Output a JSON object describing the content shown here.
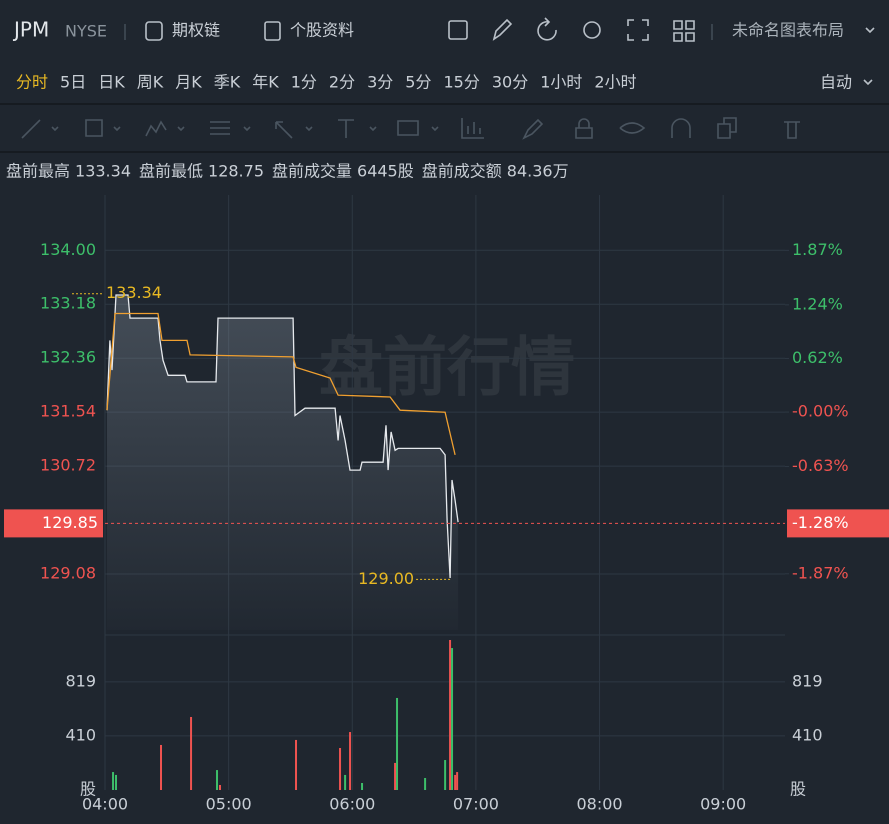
{
  "header": {
    "symbol": "JPM",
    "exchange": "NYSE",
    "buttons": [
      "期权链",
      "个股资料"
    ],
    "layout_name": "未命名图表布局"
  },
  "timeframes": {
    "items": [
      "分时",
      "5日",
      "日K",
      "周K",
      "月K",
      "季K",
      "年K",
      "1分",
      "2分",
      "3分",
      "5分",
      "15分",
      "30分",
      "1小时",
      "2小时"
    ],
    "active": 0,
    "active_color": "#e8b923",
    "mode": "自动"
  },
  "info": [
    {
      "label": "盘前最高",
      "value": "133.34"
    },
    {
      "label": "盘前最低",
      "value": "128.75"
    },
    {
      "label": "盘前成交量",
      "value": "6445股"
    },
    {
      "label": "盘前成交额",
      "value": "84.36万"
    }
  ],
  "chart_data": [
    {
      "type": "line",
      "watermark": "盘前行情",
      "xlim": [
        4,
        9.5
      ],
      "ylim": [
        128.23,
        134.84
      ],
      "y2lim": [
        -2.52,
        2.51
      ],
      "up_color": "#3dbf6a",
      "down_color": "#ef5350",
      "yticks": [
        {
          "value": 134,
          "label": "134.00"
        },
        133.18,
        132.36,
        131.54,
        130.72,
        129.08
      ],
      "y2ticks": [
        {
          "value": 1.87,
          "label": "1.87%"
        },
        {
          "value": 1.24,
          "label": "1.24%"
        },
        {
          "value": 0.62,
          "label": "0.62%"
        },
        {
          "value": 0,
          "label": "-0.00%"
        },
        {
          "value": -0.63,
          "label": "-0.63%"
        },
        {
          "value": -1.87,
          "label": "-1.87%"
        }
      ],
      "series": [
        {
          "color": "#e6e9ed",
          "x": [
            4.016,
            4.04,
            4.057,
            4.089,
            4.186,
            4.202,
            4.429,
            4.445,
            4.469,
            4.51,
            4.647,
            4.663,
            4.898,
            4.914,
            5.521,
            5.537,
            5.618,
            5.861,
            5.885,
            5.901,
            5.942,
            5.982,
            6.063,
            6.079,
            6.249,
            6.273,
            6.29,
            6.314,
            6.346,
            6.371,
            6.71,
            6.751,
            6.767,
            6.791,
            6.807,
            6.832,
            6.856
          ],
          "values": [
            131.57,
            132.63,
            132.18,
            133.32,
            133.32,
            132.97,
            132.97,
            132.63,
            132.33,
            132.1,
            132.1,
            132,
            132,
            132.97,
            132.97,
            131.49,
            131.6,
            131.6,
            131.11,
            131.49,
            131.11,
            130.66,
            130.66,
            130.78,
            130.78,
            131.34,
            130.66,
            131.24,
            130.96,
            130.99,
            130.99,
            130.89,
            129.9,
            129.02,
            130.51,
            130.2,
            129.87
          ]
        },
        {
          "color": "#f0a030",
          "x": [
            4.016,
            4.081,
            4.429,
            4.461,
            4.663,
            4.688,
            5.521,
            5.545,
            5.82,
            5.885,
            6.306,
            6.387,
            6.751,
            6.832
          ],
          "values": [
            131.57,
            133.04,
            133.04,
            132.63,
            132.63,
            132.41,
            132.38,
            132.22,
            132.06,
            131.8,
            131.77,
            131.57,
            131.54,
            130.89
          ]
        }
      ],
      "annotations": [
        {
          "x": 4.186,
          "value": 133.34
        },
        {
          "x": 6.791,
          "value": 129,
          "label": "129.00"
        }
      ],
      "current": {
        "value": 129.85,
        "change": {
          "value": -1.28,
          "label": "-1.28%"
        }
      }
    },
    {
      "type": "bar",
      "unit": "股",
      "xlim": [
        4,
        9.5
      ],
      "ylim": [
        0,
        1136
      ],
      "yticks": [
        410,
        819
      ],
      "xticks": [
        {
          "value": 4,
          "label": "04:00"
        },
        {
          "value": 5,
          "label": "05:00"
        },
        {
          "value": 6,
          "label": "06:00"
        },
        {
          "value": 7,
          "label": "07:00"
        },
        {
          "value": 8,
          "label": "08:00"
        },
        {
          "value": 9,
          "label": "09:00"
        }
      ],
      "x": [
        4.065,
        4.089,
        4.453,
        4.696,
        4.906,
        4.93,
        5.545,
        5.901,
        5.942,
        5.982,
        6.079,
        6.346,
        6.362,
        6.589,
        6.751,
        6.791,
        6.807,
        6.832,
        6.848
      ],
      "values": [
        136,
        114,
        341,
        553,
        151,
        38,
        379,
        318,
        114,
        439,
        53,
        205,
        697,
        91,
        227,
        1136,
        1075,
        114,
        136
      ],
      "colors": [
        "#3dbf6a",
        "#3dbf6a",
        "#ef5350",
        "#ef5350",
        "#3dbf6a",
        "#ef5350",
        "#ef5350",
        "#ef5350",
        "#3dbf6a",
        "#ef5350",
        "#3dbf6a",
        "#ef5350",
        "#3dbf6a",
        "#3dbf6a",
        "#3dbf6a",
        "#ef5350",
        "#3dbf6a",
        "#ef5350",
        "#ef5350"
      ]
    }
  ]
}
